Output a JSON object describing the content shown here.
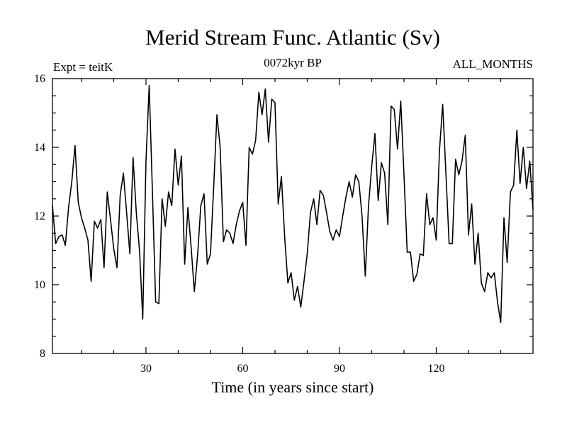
{
  "chart_data": {
    "type": "line",
    "title": "Merid Stream Func. Atlantic (Sv)",
    "subtitle_left": "Expt = teitK",
    "subtitle_center": "0072kyr BP",
    "subtitle_right": "ALL_MONTHS",
    "xlabel": "Time (in years since start)",
    "ylabel": "",
    "xlim": [
      1,
      150
    ],
    "ylim": [
      8,
      16
    ],
    "x_ticks": [
      30,
      60,
      90,
      120
    ],
    "x_tick_labels": [
      "30",
      "60",
      "90",
      "120"
    ],
    "y_ticks": [
      8,
      10,
      12,
      14,
      16
    ],
    "y_tick_labels": [
      "8",
      "10",
      "12",
      "14",
      "16"
    ],
    "grid": false,
    "series": [
      {
        "name": "Merid Stream Func. Atlantic",
        "color": "#000000",
        "values": [
          12.3,
          11.2,
          11.4,
          11.45,
          11.15,
          12.25,
          13.0,
          14.05,
          12.4,
          11.95,
          11.65,
          11.3,
          10.1,
          11.85,
          11.65,
          11.9,
          10.5,
          12.7,
          11.9,
          11.05,
          10.5,
          12.6,
          13.25,
          12.1,
          10.9,
          13.7,
          12.1,
          11.0,
          9.0,
          13.6,
          15.8,
          12.7,
          9.5,
          9.45,
          12.5,
          11.7,
          12.7,
          12.3,
          13.95,
          12.9,
          13.75,
          10.6,
          12.25,
          11.1,
          9.8,
          10.85,
          12.3,
          12.65,
          10.6,
          10.9,
          12.85,
          14.95,
          14.0,
          11.25,
          11.6,
          11.5,
          11.2,
          11.75,
          12.15,
          12.4,
          11.15,
          14.0,
          13.8,
          14.2,
          15.6,
          14.95,
          15.7,
          14.15,
          15.4,
          15.3,
          12.35,
          13.15,
          11.4,
          10.05,
          10.35,
          9.55,
          9.95,
          9.35,
          10.1,
          10.9,
          12.1,
          12.5,
          11.75,
          12.75,
          12.6,
          12.1,
          11.55,
          11.3,
          11.6,
          11.4,
          12.0,
          12.55,
          13.0,
          12.55,
          13.2,
          13.0,
          12.0,
          10.25,
          12.3,
          13.45,
          14.4,
          12.45,
          13.55,
          13.25,
          11.75,
          15.2,
          15.1,
          13.95,
          15.35,
          13.2,
          10.95,
          10.95,
          10.1,
          10.3,
          10.9,
          10.85,
          12.65,
          11.75,
          11.95,
          11.3,
          13.9,
          15.25,
          13.25,
          11.2,
          11.2,
          13.65,
          13.2,
          13.6,
          14.35,
          11.45,
          12.35,
          10.6,
          11.5,
          10.05,
          9.8,
          10.35,
          10.2,
          10.35,
          9.5,
          8.9,
          11.95,
          10.65,
          12.7,
          12.9,
          14.5,
          12.95,
          14.0,
          12.8,
          13.6,
          12.2
        ]
      }
    ]
  }
}
